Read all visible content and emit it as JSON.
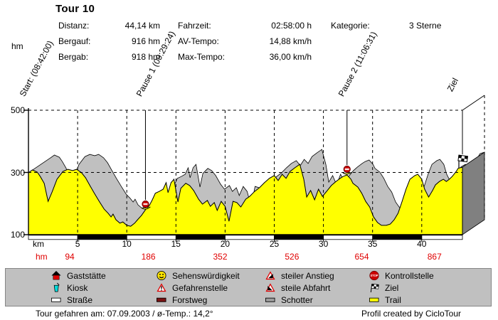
{
  "title": "Tour 10",
  "axes": {
    "y_unit": "hm",
    "x_unit": "km"
  },
  "stats": {
    "col1": [
      {
        "label": "Distanz:",
        "value": "44,14 km"
      },
      {
        "label": "Bergauf:",
        "value": "916 hm"
      },
      {
        "label": "Bergab:",
        "value": "918 hm"
      }
    ],
    "col2": [
      {
        "label": "Fahrzeit:",
        "value": "02:58:00 h"
      },
      {
        "label": "AV-Tempo:",
        "value": "14,88 km/h"
      },
      {
        "label": "Max-Tempo:",
        "value": "36,00 km/h"
      }
    ],
    "col3": [
      {
        "label": "Kategorie:",
        "value": "3 Sterne"
      }
    ]
  },
  "markers": [
    {
      "name": "start",
      "label": "Start: (08:42:00)",
      "km": 0,
      "has_line": false,
      "icon": null
    },
    {
      "name": "pause1",
      "label": "Pause 1 (09:29:24)",
      "km": 11.9,
      "has_line": true,
      "icon": "stop"
    },
    {
      "name": "pause2",
      "label": "Pause 2 (11:06:31)",
      "km": 32.4,
      "has_line": true,
      "icon": "stop"
    },
    {
      "name": "ziel",
      "label": "Ziel",
      "km": 44.14,
      "has_line": true,
      "icon": "flag"
    }
  ],
  "chart_data": {
    "type": "area",
    "title": "Tour 10",
    "xlabel": "km",
    "ylabel": "hm",
    "x_range": [
      0,
      44.14
    ],
    "y_range": [
      100,
      500
    ],
    "x_ticks": [
      5,
      10,
      15,
      20,
      25,
      30,
      35,
      40
    ],
    "y_ticks": [
      100,
      300,
      500
    ],
    "grid": "dashed",
    "legend_position": "bottom",
    "surface_color": "#ffff00",
    "shadow_color": "#c0c0c0",
    "side_color": "#808080",
    "profile": [
      [
        0,
        299
      ],
      [
        0.4,
        308
      ],
      [
        0.9,
        301
      ],
      [
        1.2,
        287
      ],
      [
        1.6,
        265
      ],
      [
        2.0,
        207
      ],
      [
        2.4,
        237
      ],
      [
        2.9,
        278
      ],
      [
        3.5,
        303
      ],
      [
        4.0,
        310
      ],
      [
        4.5,
        306
      ],
      [
        4.9,
        310
      ],
      [
        5.4,
        299
      ],
      [
        5.8,
        283
      ],
      [
        6.3,
        255
      ],
      [
        6.7,
        233
      ],
      [
        7.2,
        207
      ],
      [
        7.7,
        182
      ],
      [
        8.1,
        169
      ],
      [
        8.4,
        157
      ],
      [
        8.6,
        166
      ],
      [
        8.9,
        148
      ],
      [
        9.3,
        137
      ],
      [
        9.6,
        141
      ],
      [
        10.0,
        130
      ],
      [
        10.4,
        127
      ],
      [
        10.8,
        137
      ],
      [
        11.1,
        148
      ],
      [
        11.5,
        162
      ],
      [
        11.9,
        180
      ],
      [
        12.3,
        194
      ],
      [
        12.6,
        212
      ],
      [
        12.9,
        233
      ],
      [
        13.3,
        239
      ],
      [
        13.7,
        246
      ],
      [
        14.0,
        267
      ],
      [
        14.2,
        235
      ],
      [
        14.5,
        267
      ],
      [
        14.8,
        278
      ],
      [
        15.2,
        205
      ],
      [
        15.5,
        249
      ],
      [
        16.0,
        265
      ],
      [
        16.4,
        258
      ],
      [
        16.8,
        242
      ],
      [
        17.3,
        214
      ],
      [
        17.7,
        198
      ],
      [
        18.2,
        210
      ],
      [
        18.5,
        191
      ],
      [
        18.9,
        203
      ],
      [
        19.2,
        178
      ],
      [
        19.6,
        207
      ],
      [
        20.0,
        191
      ],
      [
        20.4,
        143
      ],
      [
        20.8,
        207
      ],
      [
        21.2,
        203
      ],
      [
        21.6,
        189
      ],
      [
        22.1,
        214
      ],
      [
        22.5,
        223
      ],
      [
        23.0,
        239
      ],
      [
        23.5,
        251
      ],
      [
        24.0,
        267
      ],
      [
        24.5,
        281
      ],
      [
        25.0,
        290
      ],
      [
        25.4,
        274
      ],
      [
        25.8,
        294
      ],
      [
        26.2,
        281
      ],
      [
        26.6,
        303
      ],
      [
        27.1,
        315
      ],
      [
        27.6,
        326
      ],
      [
        28.0,
        278
      ],
      [
        28.3,
        221
      ],
      [
        28.7,
        242
      ],
      [
        29.1,
        212
      ],
      [
        29.5,
        246
      ],
      [
        29.9,
        223
      ],
      [
        30.4,
        242
      ],
      [
        30.8,
        258
      ],
      [
        31.2,
        269
      ],
      [
        31.7,
        281
      ],
      [
        32.0,
        287
      ],
      [
        32.4,
        292
      ],
      [
        32.8,
        278
      ],
      [
        33.0,
        265
      ],
      [
        33.5,
        253
      ],
      [
        33.9,
        233
      ],
      [
        34.3,
        207
      ],
      [
        34.7,
        189
      ],
      [
        35.1,
        157
      ],
      [
        35.5,
        139
      ],
      [
        35.9,
        130
      ],
      [
        36.4,
        130
      ],
      [
        36.8,
        134
      ],
      [
        37.2,
        148
      ],
      [
        37.6,
        169
      ],
      [
        38.0,
        207
      ],
      [
        38.4,
        246
      ],
      [
        38.8,
        278
      ],
      [
        39.3,
        290
      ],
      [
        39.6,
        294
      ],
      [
        40.0,
        278
      ],
      [
        40.3,
        246
      ],
      [
        40.7,
        221
      ],
      [
        41.1,
        242
      ],
      [
        41.4,
        260
      ],
      [
        41.8,
        271
      ],
      [
        42.2,
        278
      ],
      [
        42.5,
        271
      ],
      [
        42.8,
        278
      ],
      [
        43.1,
        287
      ],
      [
        43.5,
        303
      ],
      [
        43.7,
        313
      ],
      [
        44.14,
        317
      ]
    ],
    "cumulative_climb": [
      {
        "km": 4.2,
        "hm": 94
      },
      {
        "km": 12.2,
        "hm": 186
      },
      {
        "km": 19.5,
        "hm": 352
      },
      {
        "km": 26.8,
        "hm": 526
      },
      {
        "km": 33.9,
        "hm": 654
      },
      {
        "km": 41.3,
        "hm": 867
      }
    ],
    "scale_bar_boundaries_km": [
      0,
      5,
      10,
      15,
      20,
      25,
      30,
      35,
      40,
      44.14
    ]
  },
  "legend": {
    "columns": [
      [
        {
          "icon": "house",
          "label": "Gaststätte"
        },
        {
          "icon": "cup",
          "label": "Kiosk"
        },
        {
          "icon": "road",
          "label": "Straße"
        }
      ],
      [
        {
          "icon": "smiley",
          "label": "Sehenswürdigkeit"
        },
        {
          "icon": "warning",
          "label": "Gefahrenstelle"
        },
        {
          "icon": "forest",
          "label": "Forstweg"
        }
      ],
      [
        {
          "icon": "steepup",
          "label": "steiler Anstieg"
        },
        {
          "icon": "steepdown",
          "label": "steile Abfahrt"
        },
        {
          "icon": "gravel",
          "label": "Schotter"
        }
      ],
      [
        {
          "icon": "stop",
          "label": "Kontrollstelle"
        },
        {
          "icon": "flag",
          "label": "Ziel"
        },
        {
          "icon": "trail",
          "label": "Trail"
        }
      ]
    ]
  },
  "footer": {
    "left": "Tour gefahren am: 07.09.2003  /  ø-Temp.: 14,2°",
    "right": "Profil created by CicloTour"
  },
  "colors": {
    "trail": "#ffff00",
    "schotter": "#c0c0c0",
    "side_face": "#808080",
    "climb_text": "#e00000",
    "legend_bg": "#c0c0c0"
  }
}
